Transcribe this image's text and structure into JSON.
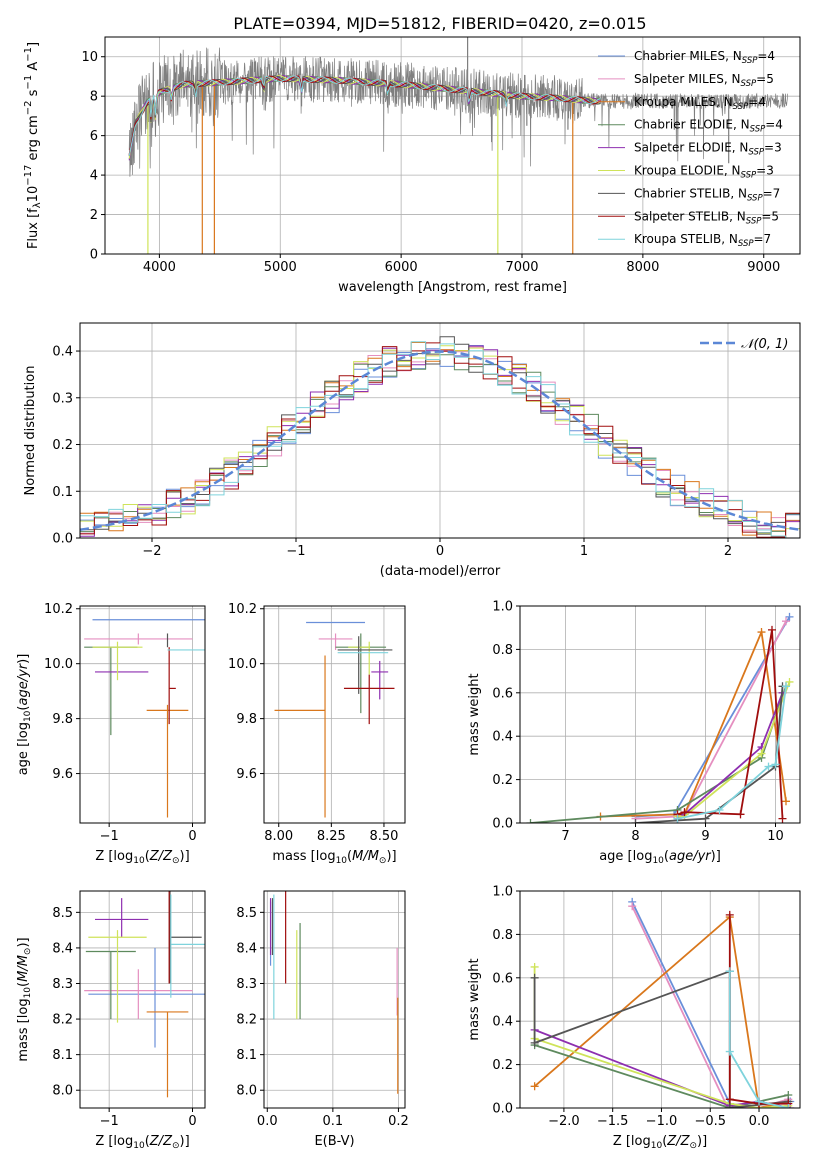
{
  "figure": {
    "title": "PLATE=0394, MJD=51812, FIBERID=0420, z=0.015"
  },
  "series_styles": [
    {
      "name": "Chabrier MILES",
      "nssp": "4",
      "color": "#6a8fd9"
    },
    {
      "name": "Salpeter MILES",
      "nssp": "5",
      "color": "#e58fc0"
    },
    {
      "name": "Kroupa MILES",
      "nssp": "4",
      "color": "#d9771c"
    },
    {
      "name": "Chabrier ELODIE",
      "nssp": "4",
      "color": "#5e8a5e"
    },
    {
      "name": "Salpeter ELODIE",
      "nssp": "3",
      "color": "#8e2fb0"
    },
    {
      "name": "Kroupa ELODIE",
      "nssp": "3",
      "color": "#cfe35a"
    },
    {
      "name": "Chabrier STELIB",
      "nssp": "7",
      "color": "#555555"
    },
    {
      "name": "Salpeter STELIB",
      "nssp": "5",
      "color": "#a00e0e"
    },
    {
      "name": "Kroupa STELIB",
      "nssp": "7",
      "color": "#7fd3dc"
    }
  ],
  "chart_data": [
    {
      "id": "spectrum",
      "type": "line",
      "xlabel": "wavelength [Angstrom, rest frame]",
      "ylabel_tex": "Flux [f_λ10^-17 erg cm^-2 s^-1 A^-1]",
      "xlim": [
        3550,
        9300
      ],
      "ylim": [
        0,
        11
      ],
      "xticks": [
        4000,
        5000,
        6000,
        7000,
        8000,
        9000
      ],
      "yticks": [
        0,
        2,
        4,
        6,
        8,
        10
      ],
      "data_color": "#7f7f7f",
      "legend": "top-right",
      "data_range": [
        3750,
        9200
      ],
      "continuum": [
        [
          3750,
          4.9
        ],
        [
          3800,
          6.6
        ],
        [
          3900,
          7.7
        ],
        [
          4000,
          8.2
        ],
        [
          4200,
          8.6
        ],
        [
          4500,
          8.7
        ],
        [
          5000,
          8.9
        ],
        [
          5500,
          8.8
        ],
        [
          6000,
          8.6
        ],
        [
          6500,
          8.3
        ],
        [
          7000,
          8.0
        ],
        [
          7300,
          7.9
        ],
        [
          7600,
          7.75
        ]
      ],
      "data_noise_amp": 1.3,
      "absorption": [
        [
          3933,
          1.5
        ],
        [
          3968,
          1.5
        ],
        [
          4102,
          0.8
        ],
        [
          4300,
          0.7
        ],
        [
          4861,
          0.8
        ],
        [
          5175,
          0.9
        ],
        [
          5890,
          0.7
        ],
        [
          6563,
          1.0
        ],
        [
          6870,
          0.6
        ]
      ],
      "spikes": [
        [
          4455,
          0
        ],
        [
          6800,
          0
        ],
        [
          7420,
          0
        ],
        [
          3905,
          0
        ],
        [
          4355,
          0
        ],
        [
          8710,
          4.6
        ],
        [
          8260,
          6.3
        ],
        [
          7040,
          6.5
        ],
        [
          7380,
          6.3
        ],
        [
          6550,
          11
        ]
      ],
      "note": "Model spectra overlap almost completely; data drawn in grey."
    },
    {
      "id": "residuals",
      "type": "histogram",
      "xlabel": "(data-model)/error",
      "ylabel": "Normed distribution",
      "xlim": [
        -2.5,
        2.5
      ],
      "ylim": [
        0,
        0.46
      ],
      "xticks": [
        -2,
        -1,
        0,
        1,
        2
      ],
      "yticks": [
        0.0,
        0.1,
        0.2,
        0.3,
        0.4
      ],
      "bin_width": 0.1,
      "reference": {
        "name": "N(0,1)",
        "label_tex": "𝒩(0, 1)",
        "color": "#5b87d6",
        "style": "dashed"
      },
      "legend": "top-right"
    },
    {
      "id": "age_vs_Z",
      "type": "errorbar",
      "xlabel": "Z [log10(Z/Z☉)]",
      "ylabel": "age [log10(age/yr)]",
      "xlim": [
        -1.35,
        0.15
      ],
      "ylim": [
        9.42,
        10.21
      ],
      "xticks": [
        -1,
        0
      ],
      "yticks": [
        9.6,
        9.8,
        10.0,
        10.2
      ],
      "points": [
        {
          "s": 0,
          "x": -0.45,
          "xe": [
            0.75,
            0.75
          ],
          "y": 10.16,
          "ye": [
            0.0,
            0.0
          ]
        },
        {
          "s": 1,
          "x": -0.65,
          "xe": [
            0.65,
            0.65
          ],
          "y": 10.09,
          "ye": [
            0.02,
            0.02
          ]
        },
        {
          "s": 2,
          "x": -0.3,
          "xe": [
            0.25,
            0.25
          ],
          "y": 9.83,
          "ye": [
            0.39,
            0.02
          ]
        },
        {
          "s": 3,
          "x": -0.98,
          "xe": [
            0.32,
            0.32
          ],
          "y": 10.06,
          "ye": [
            0.32,
            0.0
          ]
        },
        {
          "s": 4,
          "x": -0.85,
          "xe": [
            0.32,
            0.32
          ],
          "y": 9.97,
          "ye": [
            0.0,
            0.0
          ]
        },
        {
          "s": 5,
          "x": -0.9,
          "xe": [
            0.3,
            0.3
          ],
          "y": 10.06,
          "ye": [
            0.12,
            0.02
          ]
        },
        {
          "s": 6,
          "x": -0.3,
          "xe": [
            0.0,
            0.0
          ],
          "y": 10.06,
          "ye": [
            0.0,
            0.05
          ]
        },
        {
          "s": 7,
          "x": -0.28,
          "xe": [
            0.0,
            0.08
          ],
          "y": 9.91,
          "ye": [
            0.13,
            0.15
          ]
        },
        {
          "s": 8,
          "x": -0.05,
          "xe": [
            0.25,
            0.25
          ],
          "y": 10.05,
          "ye": [
            0.0,
            0.0
          ]
        }
      ]
    },
    {
      "id": "age_vs_mass",
      "type": "errorbar",
      "xlabel": "mass [log10(M/M☉)]",
      "xlim": [
        7.93,
        8.6
      ],
      "ylim": [
        9.42,
        10.21
      ],
      "xticks": [
        8.0,
        8.25,
        8.5
      ],
      "yticks": [
        9.6,
        9.8,
        10.0,
        10.2
      ],
      "points": [
        {
          "s": 0,
          "x": 8.27,
          "xe": [
            0.14,
            0.14
          ],
          "y": 10.15,
          "ye": [
            0.0,
            0.0
          ]
        },
        {
          "s": 1,
          "x": 8.27,
          "xe": [
            0.08,
            0.08
          ],
          "y": 10.09,
          "ye": [
            0.04,
            0.02
          ]
        },
        {
          "s": 2,
          "x": 8.22,
          "xe": [
            0.24,
            0.0
          ],
          "y": 9.83,
          "ye": [
            0.39,
            0.2
          ]
        },
        {
          "s": 3,
          "x": 8.39,
          "xe": [
            0.12,
            0.12
          ],
          "y": 10.06,
          "ye": [
            0.24,
            0.05
          ]
        },
        {
          "s": 4,
          "x": 8.48,
          "xe": [
            0.04,
            0.04
          ],
          "y": 9.97,
          "ye": [
            0.1,
            0.04
          ]
        },
        {
          "s": 5,
          "x": 8.43,
          "xe": [
            0.1,
            0.0
          ],
          "y": 10.06,
          "ye": [
            0.1,
            0.02
          ]
        },
        {
          "s": 6,
          "x": 8.38,
          "xe": [
            0.1,
            0.16
          ],
          "y": 10.05,
          "ye": [
            0.16,
            0.05
          ]
        },
        {
          "s": 7,
          "x": 8.43,
          "xe": [
            0.12,
            0.12
          ],
          "y": 9.91,
          "ye": [
            0.13,
            0.05
          ]
        },
        {
          "s": 8,
          "x": 8.4,
          "xe": [
            0.12,
            0.12
          ],
          "y": 10.04,
          "ye": [
            0.0,
            0.0
          ]
        }
      ]
    },
    {
      "id": "weight_vs_age",
      "type": "line",
      "xlabel": "age [log10(age/yr)]",
      "ylabel": "mass weight",
      "xlim": [
        6.35,
        10.35
      ],
      "ylim": [
        0,
        1
      ],
      "xticks": [
        7,
        8,
        9,
        10
      ],
      "yticks": [
        0.0,
        0.2,
        0.4,
        0.6,
        0.8,
        1.0
      ],
      "series": [
        {
          "s": 0,
          "x": [
            8.0,
            8.55,
            10.2
          ],
          "y": [
            0.03,
            0.04,
            0.95
          ]
        },
        {
          "s": 1,
          "x": [
            8.0,
            8.6,
            8.7,
            10.15
          ],
          "y": [
            0.02,
            0.03,
            0.04,
            0.93
          ]
        },
        {
          "s": 2,
          "x": [
            7.5,
            8.7,
            9.8,
            10.15
          ],
          "y": [
            0.03,
            0.04,
            0.88,
            0.1
          ]
        },
        {
          "s": 3,
          "x": [
            6.5,
            8.6,
            9.8,
            10.15
          ],
          "y": [
            0.0,
            0.06,
            0.3,
            0.63
          ]
        },
        {
          "s": 4,
          "x": [
            8.6,
            8.7,
            9.8,
            10.1
          ],
          "y": [
            0.02,
            0.04,
            0.35,
            0.6
          ]
        },
        {
          "s": 5,
          "x": [
            8.6,
            8.7,
            9.8,
            10.2
          ],
          "y": [
            0.03,
            0.03,
            0.32,
            0.65
          ]
        },
        {
          "s": 6,
          "x": [
            8.0,
            9.0,
            10.0,
            10.1
          ],
          "y": [
            0.0,
            0.02,
            0.26,
            0.63
          ]
        },
        {
          "s": 7,
          "x": [
            8.6,
            8.7,
            9.5,
            9.95,
            10.1
          ],
          "y": [
            0.04,
            0.05,
            0.04,
            0.89,
            0.02
          ]
        },
        {
          "s": 8,
          "x": [
            8.6,
            9.2,
            9.9,
            10.0,
            10.15
          ],
          "y": [
            0.02,
            0.06,
            0.26,
            0.27,
            0.63
          ]
        }
      ]
    },
    {
      "id": "mass_vs_Z",
      "type": "errorbar",
      "xlabel": "Z [log10(Z/Z☉)]",
      "ylabel": "mass [log10(M/M☉)]",
      "xlim": [
        -1.35,
        0.15
      ],
      "ylim": [
        7.95,
        8.56
      ],
      "xticks": [
        -1,
        0
      ],
      "yticks": [
        8.0,
        8.1,
        8.2,
        8.3,
        8.4,
        8.5
      ],
      "points": [
        {
          "s": 0,
          "x": -0.45,
          "xe": [
            0.8,
            0.8
          ],
          "y": 8.27,
          "ye": [
            0.15,
            0.13
          ]
        },
        {
          "s": 1,
          "x": -0.65,
          "xe": [
            0.65,
            0.65
          ],
          "y": 8.28,
          "ye": [
            0.08,
            0.06
          ]
        },
        {
          "s": 2,
          "x": -0.3,
          "xe": [
            0.25,
            0.25
          ],
          "y": 8.22,
          "ye": [
            0.24,
            0.0
          ]
        },
        {
          "s": 3,
          "x": -0.98,
          "xe": [
            0.3,
            0.3
          ],
          "y": 8.39,
          "ye": [
            0.19,
            0.0
          ]
        },
        {
          "s": 4,
          "x": -0.85,
          "xe": [
            0.32,
            0.32
          ],
          "y": 8.48,
          "ye": [
            0.05,
            0.06
          ]
        },
        {
          "s": 5,
          "x": -0.9,
          "xe": [
            0.35,
            0.35
          ],
          "y": 8.43,
          "ye": [
            0.24,
            0.02
          ]
        },
        {
          "s": 6,
          "x": -0.27,
          "xe": [
            0.0,
            0.38
          ],
          "y": 8.43,
          "ye": [
            0.13,
            0.13
          ]
        },
        {
          "s": 7,
          "x": -0.28,
          "xe": [
            0.0,
            0.0
          ],
          "y": 8.43,
          "ye": [
            0.13,
            0.13
          ]
        },
        {
          "s": 8,
          "x": -0.26,
          "xe": [
            0.0,
            0.45
          ],
          "y": 8.41,
          "ye": [
            0.15,
            0.14
          ]
        }
      ]
    },
    {
      "id": "mass_vs_ebv",
      "type": "errorbar",
      "xlabel": "E(B-V)",
      "xlim": [
        -0.005,
        0.21
      ],
      "ylim": [
        7.95,
        8.56
      ],
      "xticks": [
        0.0,
        0.1,
        0.2
      ],
      "yticks": [
        8.0,
        8.1,
        8.2,
        8.3,
        8.4,
        8.5
      ],
      "points": [
        {
          "s": 0,
          "x": 0.005,
          "xe": [
            0,
            0
          ],
          "y": 8.43,
          "ye": [
            0.08,
            0.1
          ]
        },
        {
          "s": 1,
          "x": 0.198,
          "xe": [
            0,
            0
          ],
          "y": 8.28,
          "ye": [
            0.07,
            0.12
          ]
        },
        {
          "s": 2,
          "x": 0.199,
          "xe": [
            0,
            0
          ],
          "y": 8.12,
          "ye": [
            0.13,
            0.14
          ]
        },
        {
          "s": 3,
          "x": 0.05,
          "xe": [
            0,
            0
          ],
          "y": 8.33,
          "ye": [
            0.13,
            0.14
          ]
        },
        {
          "s": 4,
          "x": 0.005,
          "xe": [
            0,
            0
          ],
          "y": 8.46,
          "ye": [
            0.08,
            0.08
          ]
        },
        {
          "s": 5,
          "x": 0.045,
          "xe": [
            0,
            0
          ],
          "y": 8.32,
          "ye": [
            0.12,
            0.13
          ]
        },
        {
          "s": 6,
          "x": 0.008,
          "xe": [
            0,
            0
          ],
          "y": 8.46,
          "ye": [
            0.08,
            0.08
          ]
        },
        {
          "s": 7,
          "x": 0.028,
          "xe": [
            0,
            0
          ],
          "y": 8.43,
          "ye": [
            0.13,
            0.13
          ]
        },
        {
          "s": 8,
          "x": 0.01,
          "xe": [
            0,
            0
          ],
          "y": 8.38,
          "ye": [
            0.18,
            0.17
          ]
        }
      ]
    },
    {
      "id": "weight_vs_Z",
      "type": "line",
      "xlabel": "Z [log10(Z/Z☉)]",
      "ylabel": "mass weight",
      "xlim": [
        -2.45,
        0.42
      ],
      "ylim": [
        0,
        1
      ],
      "xticks": [
        -2.0,
        -1.5,
        -1.0,
        -0.5,
        0.0
      ],
      "yticks": [
        0.0,
        0.2,
        0.4,
        0.6,
        0.8,
        1.0
      ],
      "series": [
        {
          "s": 0,
          "x": [
            -1.3,
            -0.3,
            0.0,
            0.32
          ],
          "y": [
            0.95,
            0.02,
            0.0,
            0.03
          ]
        },
        {
          "s": 1,
          "x": [
            -1.3,
            -0.33,
            0.0,
            0.3
          ],
          "y": [
            0.93,
            0.01,
            0.0,
            0.04
          ]
        },
        {
          "s": 2,
          "x": [
            -2.3,
            -0.3,
            0.0,
            0.3
          ],
          "y": [
            0.1,
            0.88,
            0.0,
            0.03
          ]
        },
        {
          "s": 3,
          "x": [
            -2.3,
            -0.3,
            0.0,
            0.3
          ],
          "y": [
            0.29,
            0.0,
            0.03,
            0.06
          ]
        },
        {
          "s": 4,
          "x": [
            -2.3,
            -0.3,
            0.0,
            0.32
          ],
          "y": [
            0.36,
            0.01,
            0.03,
            0.0
          ]
        },
        {
          "s": 5,
          "x": [
            -2.3,
            -2.3,
            -0.3,
            0.0,
            0.3
          ],
          "y": [
            0.65,
            0.32,
            0.02,
            0.0,
            0.01
          ]
        },
        {
          "s": 6,
          "x": [
            -2.3,
            -2.3,
            -0.3,
            -0.3,
            0.3
          ],
          "y": [
            0.6,
            0.3,
            0.63,
            0.0,
            0.03
          ]
        },
        {
          "s": 7,
          "x": [
            -0.3,
            -0.3,
            0.0,
            0.3
          ],
          "y": [
            0.89,
            0.04,
            0.02,
            0.02
          ]
        },
        {
          "s": 8,
          "x": [
            -0.3,
            -0.3,
            0.0,
            0.3
          ],
          "y": [
            0.63,
            0.26,
            0.03,
            0.0
          ]
        }
      ]
    }
  ]
}
